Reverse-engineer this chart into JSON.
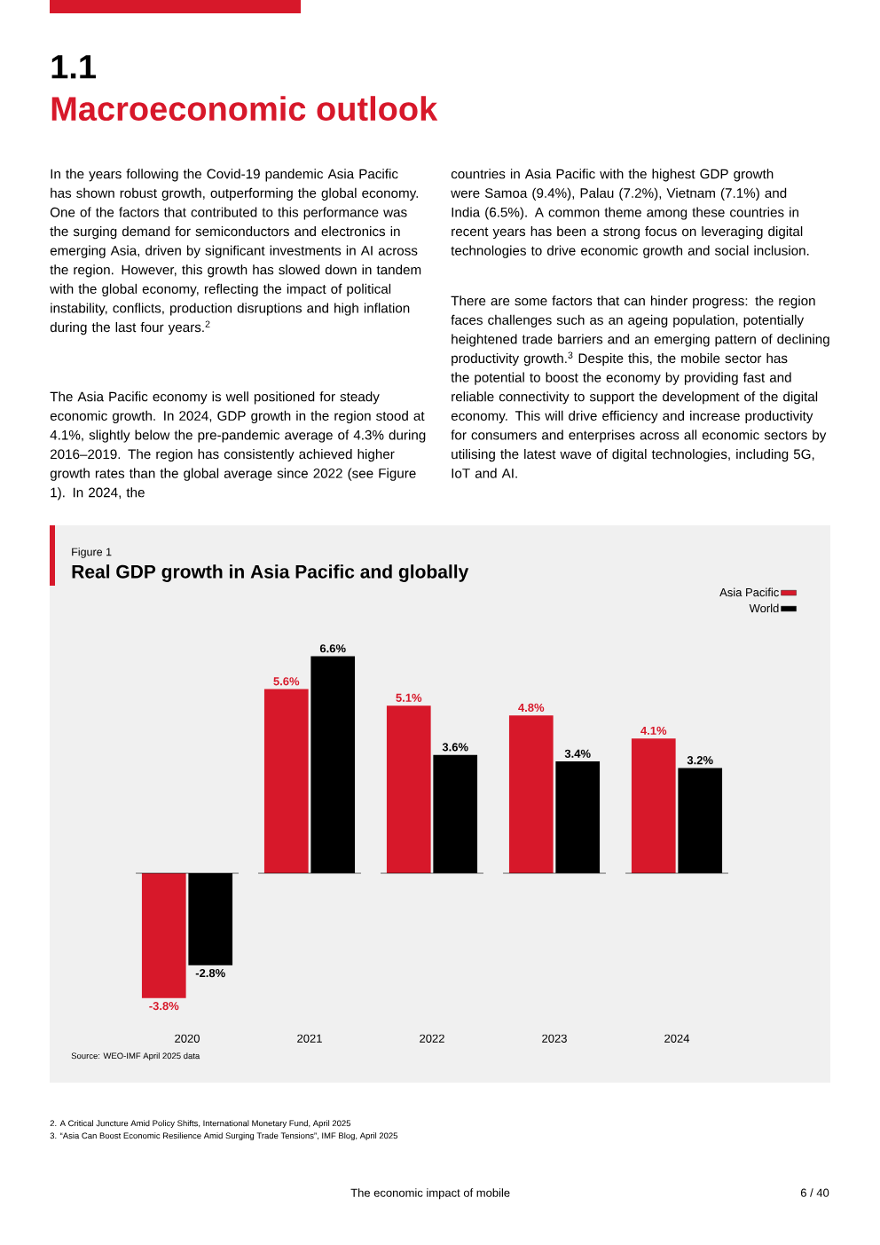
{
  "chart_data": {
    "type": "bar",
    "title": "Real GDP growth in Asia Pacific and globally",
    "categories": [
      "2020",
      "2021",
      "2022",
      "2023",
      "2024"
    ],
    "series": [
      {
        "name": "Asia Pacific",
        "color": "#d7182a",
        "values": [
          -3.8,
          5.6,
          5.1,
          4.8,
          4.1
        ],
        "value_labels": [
          "-3.8%",
          "5.6%",
          "5.1%",
          "4.8%",
          "4.1%"
        ]
      },
      {
        "name": "World",
        "color": "#000000",
        "values": [
          -2.8,
          6.6,
          3.6,
          3.4,
          3.2
        ],
        "value_labels": [
          "-2.8%",
          "6.6%",
          "3.6%",
          "3.4%",
          "3.2%"
        ]
      }
    ],
    "legend": "top right",
    "ref_lines": [
      {
        "axis": "y",
        "value": 0,
        "color": "#000000"
      }
    ],
    "annotations": [
      "1.1",
      "Macroeconomic outlook",
      "In the years following the Covid-19 pandemic Asia Pacific has shown robust growth, outperforming the global economy. One of the factors that contributed to this performance was the surging demand for semiconductors and electronics in emerging Asia, driven by significant investments in AI across the region. However, this growth has slowed down in tandem with the global economy, reflecting the impact of political instability, conflicts, production disruptions and high inflation during the last four years.$^{2}$",
      "The Asia Pacific economy is well positioned for steady economic growth. In 2024, GDP growth in the region stood at 4.1%, slightly below the pre-pandemic average of 4.3% during 2016–2019. The region has consistently achieved higher growth rates than the global average since 2022 (see Figure 1). In 2024, the",
      "countries in Asia Pacific with the highest GDP growth were Samoa (9.4%), Palau (7.2%), Vietnam (7.1%) and India (6.5%). A common theme among these countries in recent years has been a strong focus on leveraging digital technologies to drive economic growth and social inclusion.",
      "There are some factors that can hinder progress: the region faces challenges such as an ageing population, potentially heightened trade barriers and an emerging pattern of declining productivity growth.$^{3}$ Despite this, the mobile sector has the potential to boost the economy by providing fast and reliable connectivity to support the development of the digital economy. This will drive efficiency and increase productivity for consumers and enterprises across all economic sectors by utilising the latest wave of digital technologies, including 5G, IoT and AI.",
      "Figure 1",
      "Source: WEO-IMF April 2025 data",
      "2.    A Critical Juncture Amid Policy Shifts, International Monetary Fund, April 2025",
      "3.    “Asia Can Boost Economic Resilience Amid Surging Trade Tensions”, IMF Blog, April 2025",
      "The economic impact of mobile",
      "6 / 40"
    ]
  }
}
